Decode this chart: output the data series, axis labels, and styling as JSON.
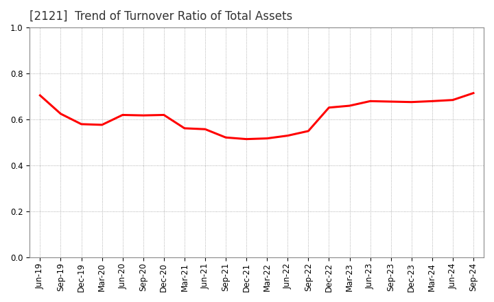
{
  "title": "[2121]  Trend of Turnover Ratio of Total Assets",
  "labels": [
    "Jun-19",
    "Sep-19",
    "Dec-19",
    "Mar-20",
    "Jun-20",
    "Sep-20",
    "Dec-20",
    "Mar-21",
    "Jun-21",
    "Sep-21",
    "Dec-21",
    "Mar-22",
    "Jun-22",
    "Sep-22",
    "Dec-22",
    "Mar-23",
    "Jun-23",
    "Sep-23",
    "Dec-23",
    "Mar-24",
    "Jun-24",
    "Sep-24"
  ],
  "values": [
    0.705,
    0.625,
    0.58,
    0.577,
    0.62,
    0.618,
    0.62,
    0.562,
    0.558,
    0.522,
    0.515,
    0.518,
    0.53,
    0.55,
    0.652,
    0.66,
    0.68,
    0.678,
    0.676,
    0.68,
    0.685,
    0.715
  ],
  "ylim": [
    0.0,
    1.0
  ],
  "yticks": [
    0.0,
    0.2,
    0.4,
    0.6,
    0.8,
    1.0
  ],
  "line_color": "#FF0000",
  "line_width": 2.2,
  "bg_color": "#FFFFFF",
  "grid_color": "#999999",
  "title_fontsize": 12,
  "title_color": "#333333",
  "tick_fontsize": 8.5
}
